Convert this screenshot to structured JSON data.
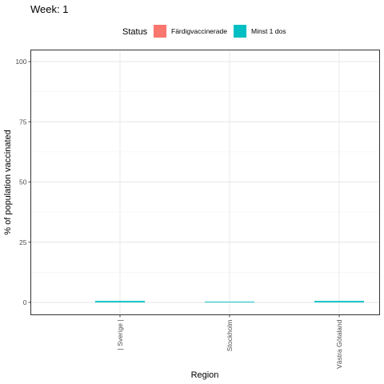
{
  "chart_data": {
    "type": "bar",
    "title": "Week: 1",
    "xlabel": "Region",
    "ylabel": "% of population vaccinated",
    "ylim": [
      -4,
      105
    ],
    "yticks": [
      0,
      25,
      50,
      75,
      100
    ],
    "grid": true,
    "legend": {
      "title": "Status",
      "placement": "top"
    },
    "categories": [
      "| Sverige |",
      "Stockholm",
      "Västra Götaland"
    ],
    "series": [
      {
        "name": "Färdigvaccinerade",
        "color": "#F8766D",
        "values": [
          0.0,
          0.0,
          0.0
        ]
      },
      {
        "name": "Minst 1 dos",
        "color": "#00BFC4",
        "values": [
          0.6,
          0.3,
          0.6
        ]
      }
    ]
  }
}
